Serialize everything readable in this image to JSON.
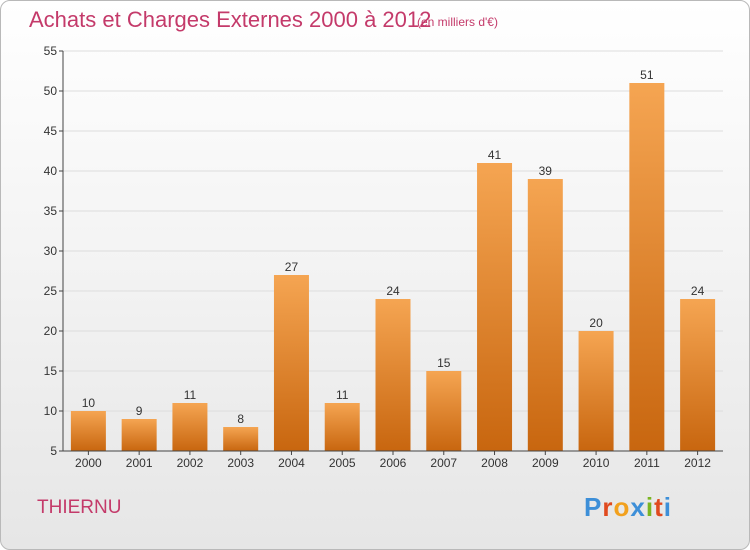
{
  "header": {
    "title": "Achats et Charges Externes 2000 à 2012",
    "subtitle": "(en milliers d'€)"
  },
  "footer": {
    "commune": "THIERNU",
    "logo_text": "Proxiti",
    "logo_colors": [
      "#3d8fd8",
      "#e04a1f",
      "#f2a11e",
      "#3d8fd8",
      "#7bb522",
      "#e04a1f",
      "#3d8fd8"
    ]
  },
  "colors": {
    "bar_top": "#f5a552",
    "bar_bottom": "#c8660f",
    "grid": "#dddddd",
    "text_accent": "#c43a6a"
  },
  "chart_data": {
    "type": "bar",
    "title": "Achats et Charges Externes 2000 à 2012",
    "categories": [
      "2000",
      "2001",
      "2002",
      "2003",
      "2004",
      "2005",
      "2006",
      "2007",
      "2008",
      "2009",
      "2010",
      "2011",
      "2012"
    ],
    "values": [
      10,
      9,
      11,
      8,
      27,
      11,
      24,
      15,
      41,
      39,
      20,
      51,
      24
    ],
    "data_labels": [
      "10",
      "9",
      "11",
      "8",
      "27",
      "11",
      "24",
      "15",
      "41",
      "39",
      "20",
      "51",
      "24"
    ],
    "ylim": [
      5,
      55
    ],
    "yticks": [
      5,
      10,
      15,
      20,
      25,
      30,
      35,
      40,
      45,
      50,
      55
    ],
    "grid": true,
    "legend": "none"
  }
}
